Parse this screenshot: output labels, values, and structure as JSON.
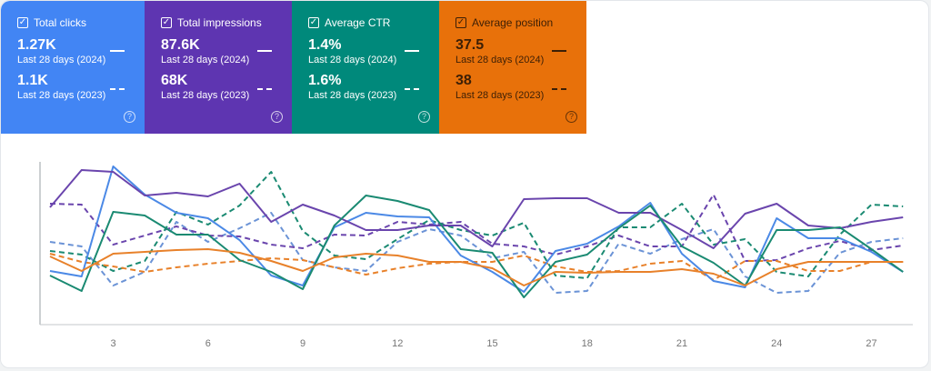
{
  "cards": [
    {
      "id": "clicks",
      "title": "Total clicks",
      "value_2024": "1.27K",
      "label_2024": "Last 28 days (2024)",
      "value_2023": "1.1K",
      "label_2023": "Last 28 days (2023)",
      "checked": true,
      "color": "#4285f4"
    },
    {
      "id": "impressions",
      "title": "Total impressions",
      "value_2024": "87.6K",
      "label_2024": "Last 28 days (2024)",
      "value_2023": "68K",
      "label_2023": "Last 28 days (2023)",
      "checked": true,
      "color": "#5e35b1"
    },
    {
      "id": "ctr",
      "title": "Average CTR",
      "value_2024": "1.4%",
      "label_2024": "Last 28 days (2024)",
      "value_2023": "1.6%",
      "label_2023": "Last 28 days (2023)",
      "checked": true,
      "color": "#00897b"
    },
    {
      "id": "position",
      "title": "Average position",
      "value_2024": "37.5",
      "label_2024": "Last 28 days (2024)",
      "value_2023": "38",
      "label_2023": "Last 28 days (2023)",
      "checked": true,
      "color": "#e8710a"
    }
  ],
  "help_glyph": "?",
  "check_glyph": "✓",
  "chart_data": {
    "type": "line",
    "title": "",
    "xlabel": "",
    "ylabel": "",
    "x": [
      1,
      2,
      3,
      4,
      5,
      6,
      7,
      8,
      9,
      10,
      11,
      12,
      13,
      14,
      15,
      16,
      17,
      18,
      19,
      20,
      21,
      22,
      23,
      24,
      25,
      26,
      27,
      28
    ],
    "xticks": [
      "3",
      "6",
      "9",
      "12",
      "15",
      "18",
      "21",
      "24",
      "27"
    ],
    "xtick_values": [
      3,
      6,
      9,
      12,
      15,
      18,
      21,
      24,
      27
    ],
    "xlim": [
      1,
      28
    ],
    "ylim": [
      0,
      180
    ],
    "y_note": "relative index (no y-axis labels shown)",
    "grid": false,
    "series": [
      {
        "name": "Total clicks 2024",
        "color": "#4b89e6",
        "dash": false,
        "values": [
          59,
          53,
          174,
          143,
          123,
          117,
          93,
          54,
          43,
          107,
          123,
          119,
          118,
          76,
          58,
          36,
          81,
          89,
          108,
          134,
          78,
          48,
          41,
          117,
          95,
          95,
          80,
          58
        ]
      },
      {
        "name": "Total clicks 2023",
        "color": "#6b93d6",
        "dash": true,
        "values": [
          91,
          86,
          43,
          58,
          113,
          91,
          106,
          123,
          71,
          63,
          59,
          91,
          105,
          98,
          73,
          80,
          35,
          37,
          89,
          78,
          94,
          105,
          53,
          35,
          37,
          79,
          91,
          95
        ]
      },
      {
        "name": "Total impressions 2024",
        "color": "#6a45ad",
        "dash": false,
        "values": [
          129,
          170,
          168,
          142,
          145,
          141,
          155,
          113,
          132,
          120,
          104,
          104,
          109,
          109,
          86,
          138,
          139,
          139,
          123,
          123,
          104,
          84,
          122,
          133,
          109,
          106,
          113,
          118
        ]
      },
      {
        "name": "Total impressions 2023",
        "color": "#6a45ad",
        "dash": true,
        "values": [
          133,
          132,
          88,
          98,
          108,
          98,
          97,
          88,
          84,
          99,
          98,
          113,
          110,
          113,
          89,
          86,
          77,
          86,
          98,
          86,
          86,
          143,
          70,
          71,
          84,
          92,
          82,
          87
        ]
      },
      {
        "name": "Average CTR 2024",
        "color": "#1a8a72",
        "dash": false,
        "values": [
          54,
          37,
          124,
          120,
          99,
          99,
          71,
          58,
          39,
          109,
          142,
          136,
          126,
          83,
          79,
          30,
          69,
          77,
          106,
          131,
          86,
          68,
          43,
          104,
          104,
          107,
          83,
          58
        ]
      },
      {
        "name": "Average CTR 2023",
        "color": "#1a8a72",
        "dash": true,
        "values": [
          81,
          77,
          59,
          70,
          124,
          110,
          131,
          168,
          103,
          76,
          72,
          94,
          115,
          104,
          98,
          112,
          54,
          51,
          107,
          107,
          133,
          88,
          94,
          58,
          53,
          99,
          132,
          130
        ]
      },
      {
        "name": "Average position 2024",
        "color": "#e8812a",
        "dash": false,
        "values": [
          75,
          59,
          78,
          80,
          82,
          83,
          79,
          70,
          59,
          74,
          78,
          76,
          69,
          69,
          62,
          43,
          58,
          57,
          58,
          58,
          61,
          56,
          43,
          61,
          69,
          69,
          69,
          69
        ]
      },
      {
        "name": "Average position 2023",
        "color": "#e8812a",
        "dash": true,
        "values": [
          78,
          69,
          64,
          58,
          63,
          67,
          70,
          73,
          71,
          63,
          55,
          62,
          67,
          69,
          69,
          76,
          64,
          58,
          59,
          67,
          70,
          49,
          70,
          70,
          59,
          59,
          69,
          69
        ]
      }
    ]
  }
}
